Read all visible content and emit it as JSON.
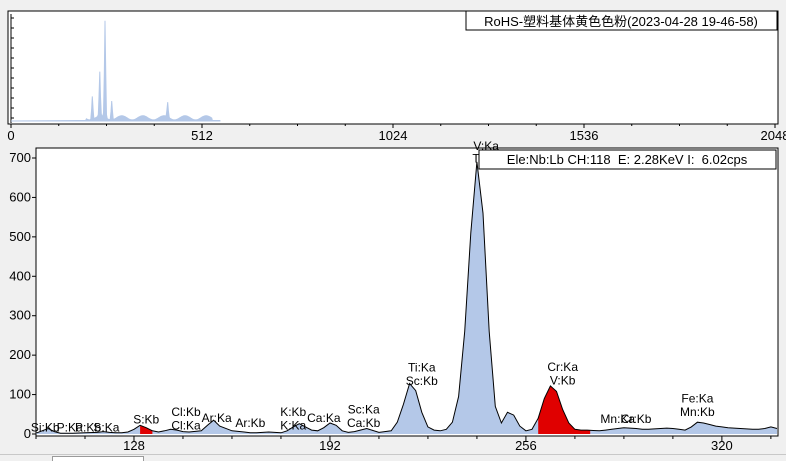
{
  "overview": {
    "title": "RoHS-塑料基体黄色色粉(2023-04-28 19-46-58)",
    "x_ticks": [
      "0",
      "512",
      "1024",
      "1536",
      "2048"
    ],
    "x_range": [
      0,
      2048
    ],
    "peaks": [
      {
        "ch": 218,
        "h": 0.22
      },
      {
        "ch": 238,
        "h": 0.42
      },
      {
        "ch": 252,
        "h": 0.92
      },
      {
        "ch": 270,
        "h": 0.18
      },
      {
        "ch": 420,
        "h": 0.14
      }
    ]
  },
  "info_box": "Ele:Nb:Lb CH:118  E: 2.28KeV I:  6.02cps",
  "colors": {
    "spectrum_fill": "#b4c8e8",
    "spectrum_line": "#000000",
    "region_fill": "#e00000",
    "frame_bg": "#ffffff",
    "window_bg": "#f0f0f0"
  },
  "chart_data": {
    "type": "area",
    "xlabel": "",
    "ylabel": "",
    "xlim": [
      96,
      338
    ],
    "ylim": [
      0,
      700
    ],
    "x_ticks": [
      128,
      192,
      256,
      320
    ],
    "y_ticks": [
      0,
      100,
      200,
      300,
      400,
      500,
      600,
      700
    ],
    "grid": false,
    "x": [
      96,
      98,
      100,
      102,
      104,
      108,
      112,
      116,
      118,
      120,
      122,
      124,
      126,
      128,
      130,
      132,
      134,
      136,
      138,
      140,
      142,
      144,
      146,
      150,
      152,
      154,
      156,
      160,
      164,
      166,
      168,
      170,
      172,
      174,
      176,
      178,
      180,
      182,
      184,
      186,
      188,
      190,
      192,
      194,
      196,
      198,
      200,
      204,
      208,
      212,
      214,
      216,
      218,
      220,
      222,
      224,
      226,
      228,
      230,
      232,
      234,
      236,
      238,
      240,
      242,
      244,
      246,
      248,
      250,
      252,
      254,
      256,
      258,
      260,
      262,
      264,
      266,
      268,
      270,
      272,
      274,
      276,
      278,
      280,
      282,
      284,
      286,
      288,
      290,
      292,
      294,
      296,
      298,
      300,
      302,
      304,
      306,
      308,
      310,
      312,
      314,
      316,
      318,
      320,
      322,
      324,
      326,
      328,
      330,
      332,
      334,
      336,
      338
    ],
    "values": [
      2,
      8,
      14,
      6,
      2,
      2,
      3,
      4,
      6,
      4,
      3,
      3,
      5,
      12,
      22,
      16,
      8,
      5,
      8,
      12,
      10,
      6,
      5,
      8,
      22,
      35,
      20,
      8,
      5,
      3,
      3,
      4,
      5,
      4,
      3,
      8,
      18,
      26,
      18,
      10,
      8,
      16,
      28,
      22,
      8,
      4,
      6,
      14,
      4,
      8,
      30,
      75,
      128,
      110,
      55,
      18,
      10,
      8,
      12,
      30,
      95,
      260,
      510,
      690,
      560,
      260,
      70,
      28,
      55,
      48,
      20,
      8,
      12,
      40,
      90,
      122,
      108,
      62,
      28,
      12,
      10,
      10,
      9,
      8,
      10,
      12,
      14,
      16,
      15,
      14,
      12,
      12,
      13,
      14,
      15,
      14,
      12,
      10,
      18,
      30,
      28,
      24,
      20,
      18,
      16,
      15,
      14,
      13,
      12,
      12,
      14,
      18,
      14
    ],
    "shaded_regions": [
      [
        130,
        134
      ],
      [
        260,
        277
      ]
    ],
    "annotations": [
      {
        "text": "Si:Kb",
        "ch": 99,
        "value": 6,
        "row": 0
      },
      {
        "text": "P:Ka",
        "ch": 107,
        "value": 6,
        "row": 0
      },
      {
        "text": "P:Kb",
        "ch": 113,
        "value": 6,
        "row": 0
      },
      {
        "text": "S:Ka",
        "ch": 119,
        "value": 6,
        "row": 0
      },
      {
        "text": "S:Kb",
        "ch": 132,
        "value": 26,
        "row": 0
      },
      {
        "text": "Cl:Kb",
        "ch": 145,
        "value": 46,
        "row": 0
      },
      {
        "text": "Cl:Ka",
        "ch": 145,
        "value": 12,
        "row": 0
      },
      {
        "text": "Ar:Ka",
        "ch": 155,
        "value": 30,
        "row": 0
      },
      {
        "text": "Ar:Kb",
        "ch": 166,
        "value": 18,
        "row": 0
      },
      {
        "text": "K:Kb",
        "ch": 180,
        "value": 46,
        "row": 0
      },
      {
        "text": "K:Ka",
        "ch": 180,
        "value": 12,
        "row": 0
      },
      {
        "text": "Ca:Ka",
        "ch": 190,
        "value": 30,
        "row": 0
      },
      {
        "text": "Sc:Ka",
        "ch": 203,
        "value": 52,
        "row": 0
      },
      {
        "text": "Ca:Kb",
        "ch": 203,
        "value": 18,
        "row": 0
      },
      {
        "text": "Ti:Ka",
        "ch": 222,
        "value": 158,
        "row": 0
      },
      {
        "text": "Sc:Kb",
        "ch": 222,
        "value": 124,
        "row": 0
      },
      {
        "text": "V:Ka",
        "ch": 243,
        "value": 720,
        "row": 0
      },
      {
        "text": "Ti:Kb",
        "ch": 243,
        "value": 688,
        "row": 0
      },
      {
        "text": "Cr:Ka",
        "ch": 268,
        "value": 160,
        "row": 0
      },
      {
        "text": "V:Kb",
        "ch": 268,
        "value": 126,
        "row": 0
      },
      {
        "text": "Mn:Ka",
        "ch": 286,
        "value": 28,
        "row": 0
      },
      {
        "text": "Cr:Kb",
        "ch": 292,
        "value": 28,
        "row": 0
      },
      {
        "text": "Fe:Ka",
        "ch": 312,
        "value": 80,
        "row": 0
      },
      {
        "text": "Mn:Kb",
        "ch": 312,
        "value": 46,
        "row": 0
      }
    ]
  }
}
